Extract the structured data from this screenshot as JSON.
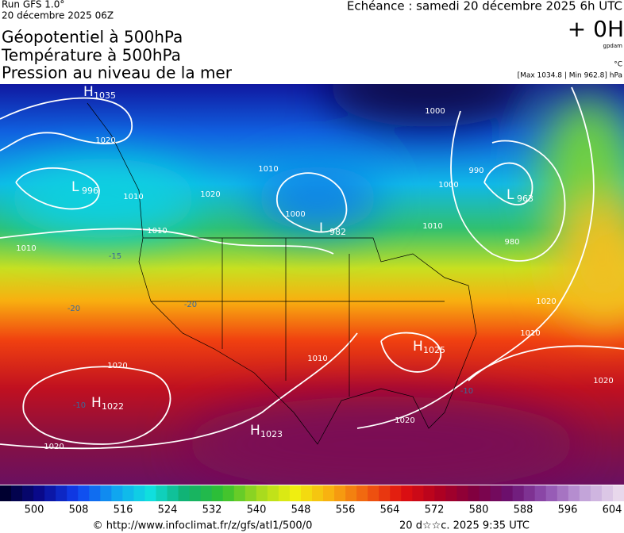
{
  "header": {
    "run": "Run GFS 1.0°",
    "date": "20 décembre 2025 06Z",
    "echeance": "Echéance : samedi 20 décembre 2025 6h UTC",
    "titles": [
      "Géopotentiel à 500hPa",
      "Température à 500hPa",
      "Pression au niveau de la mer"
    ],
    "offset": "+ 0H",
    "unit_gp": "gpdam",
    "unit_t": "°C",
    "extremes": "[Max 1034.8 | Min 962.8] hPa"
  },
  "map": {
    "centers": [
      {
        "type": "H",
        "value": 1035
      },
      {
        "type": "L",
        "value": 996
      },
      {
        "type": "L",
        "value": 963
      },
      {
        "type": "L",
        "value": 982
      },
      {
        "type": "H",
        "value": 1025
      },
      {
        "type": "H",
        "value": 1022
      },
      {
        "type": "H",
        "value": 1023
      }
    ],
    "isobar_labels": [
      1020,
      1010,
      1010,
      1020,
      1010,
      1010,
      1000,
      1000,
      990,
      980,
      1010,
      1020,
      1010,
      1020,
      1010,
      1020,
      1020,
      1020,
      1000
    ],
    "temperature_labels": [
      -20,
      -20,
      -10,
      -10,
      -15
    ]
  },
  "colorbar": {
    "ticks": [
      500,
      508,
      516,
      524,
      532,
      540,
      548,
      556,
      564,
      572,
      580,
      588,
      596,
      604
    ]
  },
  "footer": {
    "url": "© http://www.infoclimat.fr/z/gfs/atl1/500/0",
    "stamp": "20 d☆☆c. 2025  9:35 UTC"
  }
}
